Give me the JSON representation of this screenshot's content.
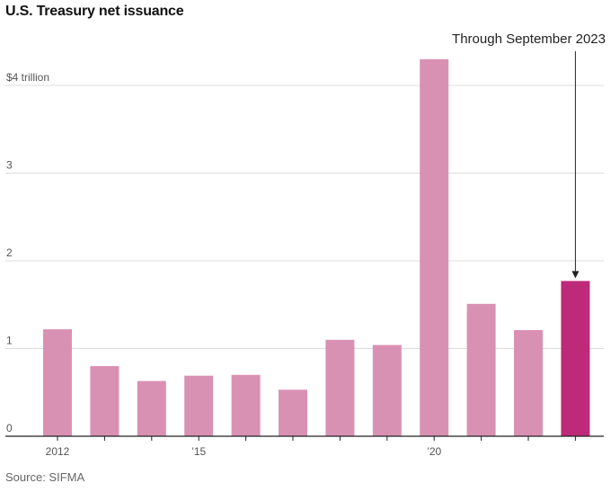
{
  "title": "U.S. Treasury net issuance",
  "source": "Source: SIFMA",
  "colors": {
    "bar": "#d991b3",
    "highlight": "#bd2a77",
    "grid": "#dddddd",
    "axis": "#222222"
  },
  "chart_data": {
    "type": "bar",
    "title": "U.S. Treasury net issuance",
    "xlabel": "",
    "ylabel": "",
    "x": [
      2012,
      2013,
      2014,
      2015,
      2016,
      2017,
      2018,
      2019,
      2020,
      2021,
      2022,
      2023
    ],
    "values": [
      1.22,
      0.8,
      0.63,
      0.69,
      0.7,
      0.53,
      1.1,
      1.04,
      4.3,
      1.51,
      1.21,
      1.77
    ],
    "highlight_index": 11,
    "ylim": [
      0,
      4.3
    ],
    "yticks": [
      {
        "value": 0,
        "label": "0"
      },
      {
        "value": 1,
        "label": "1"
      },
      {
        "value": 2,
        "label": "2"
      },
      {
        "value": 3,
        "label": "3"
      },
      {
        "value": 4,
        "label": "$4 trillion"
      }
    ],
    "xticks": [
      {
        "index": 0,
        "label": "2012"
      },
      {
        "index": 3,
        "label": "’15"
      },
      {
        "index": 8,
        "label": "’20"
      }
    ],
    "annotation": {
      "index": 11,
      "label": "Through September 2023"
    },
    "grid": true
  }
}
